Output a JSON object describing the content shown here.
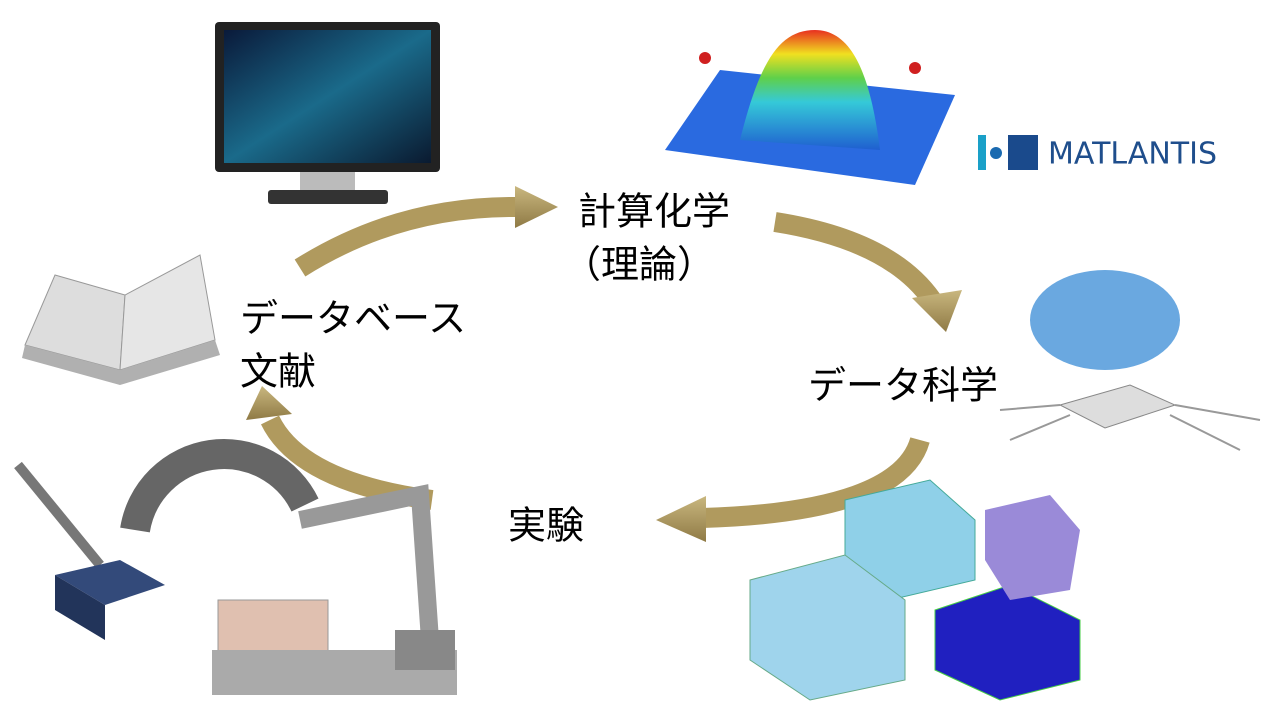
{
  "nodes": [
    {
      "label": "計算化学",
      "sublabel": "（理論）",
      "logo": "MATLANTIS"
    },
    {
      "label": "データ科学"
    },
    {
      "label": "実験"
    },
    {
      "label": "データベース",
      "sublabel": "文献"
    }
  ]
}
